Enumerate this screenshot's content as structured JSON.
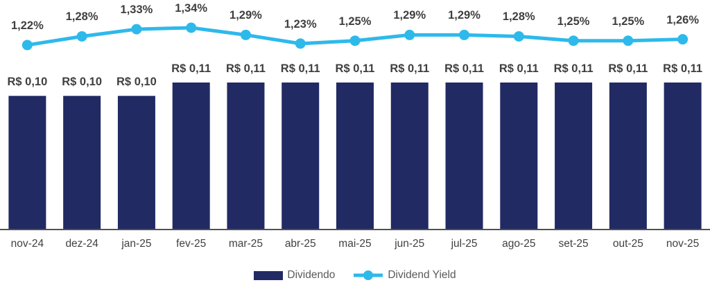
{
  "chart_data": {
    "type": "bar",
    "categories": [
      "nov-24",
      "dez-24",
      "jan-25",
      "fev-25",
      "mar-25",
      "abr-25",
      "mai-25",
      "jun-25",
      "jul-25",
      "ago-25",
      "set-25",
      "out-25",
      "nov-25"
    ],
    "series": [
      {
        "name": "Dividendo",
        "type": "bar",
        "values": [
          0.1,
          0.1,
          0.1,
          0.11,
          0.11,
          0.11,
          0.11,
          0.11,
          0.11,
          0.11,
          0.11,
          0.11,
          0.11
        ],
        "labels": [
          "R$ 0,10",
          "R$ 0,10",
          "R$ 0,10",
          "R$ 0,11",
          "R$ 0,11",
          "R$ 0,11",
          "R$ 0,11",
          "R$ 0,11",
          "R$ 0,11",
          "R$ 0,11",
          "R$ 0,11",
          "R$ 0,11",
          "R$ 0,11"
        ],
        "color": "#212a63"
      },
      {
        "name": "Dividend Yield",
        "type": "line",
        "values": [
          1.22,
          1.28,
          1.33,
          1.34,
          1.29,
          1.23,
          1.25,
          1.29,
          1.29,
          1.28,
          1.25,
          1.25,
          1.26
        ],
        "labels": [
          "1,22%",
          "1,28%",
          "1,33%",
          "1,34%",
          "1,29%",
          "1,23%",
          "1,25%",
          "1,29%",
          "1,29%",
          "1,28%",
          "1,25%",
          "1,25%",
          "1,26%"
        ],
        "color": "#2eb9eb"
      }
    ],
    "title": "",
    "xlabel": "",
    "ylabel": "",
    "grid": false,
    "legend_position": "bottom",
    "axis_line_color": "#515151",
    "label_color": "#3f3f3f"
  }
}
